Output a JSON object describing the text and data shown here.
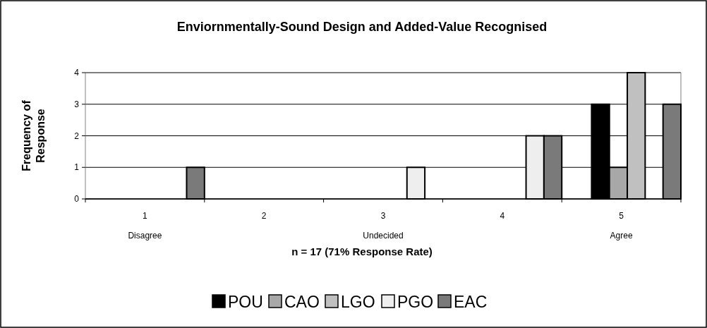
{
  "chart_data": {
    "type": "bar",
    "title": "Enviornmentally-Sound Design and Added-Value Recognised",
    "xlabel": "n = 17 (71% Response Rate)",
    "ylabel": "Frequency of Response",
    "categories": [
      "1\nDisagree",
      "2",
      "3\nUndecided",
      "4",
      "5\nAgree"
    ],
    "series": [
      {
        "name": "POU",
        "color": "#000000",
        "values": [
          0,
          0,
          0,
          0,
          3
        ]
      },
      {
        "name": "CAO",
        "color": "#a8a8a8",
        "values": [
          0,
          0,
          0,
          0,
          1
        ]
      },
      {
        "name": "LGO",
        "color": "#c0c0c0",
        "values": [
          0,
          0,
          0,
          0,
          4
        ]
      },
      {
        "name": "PGO",
        "color": "#eeeeee",
        "values": [
          0,
          0,
          1,
          2,
          0
        ]
      },
      {
        "name": "EAC",
        "color": "#7a7a7a",
        "values": [
          1,
          0,
          0,
          2,
          3
        ]
      }
    ],
    "ylim": [
      0,
      4
    ],
    "yticks": [
      0,
      1,
      2,
      3,
      4
    ],
    "grid": "y",
    "legend": "bottom"
  }
}
